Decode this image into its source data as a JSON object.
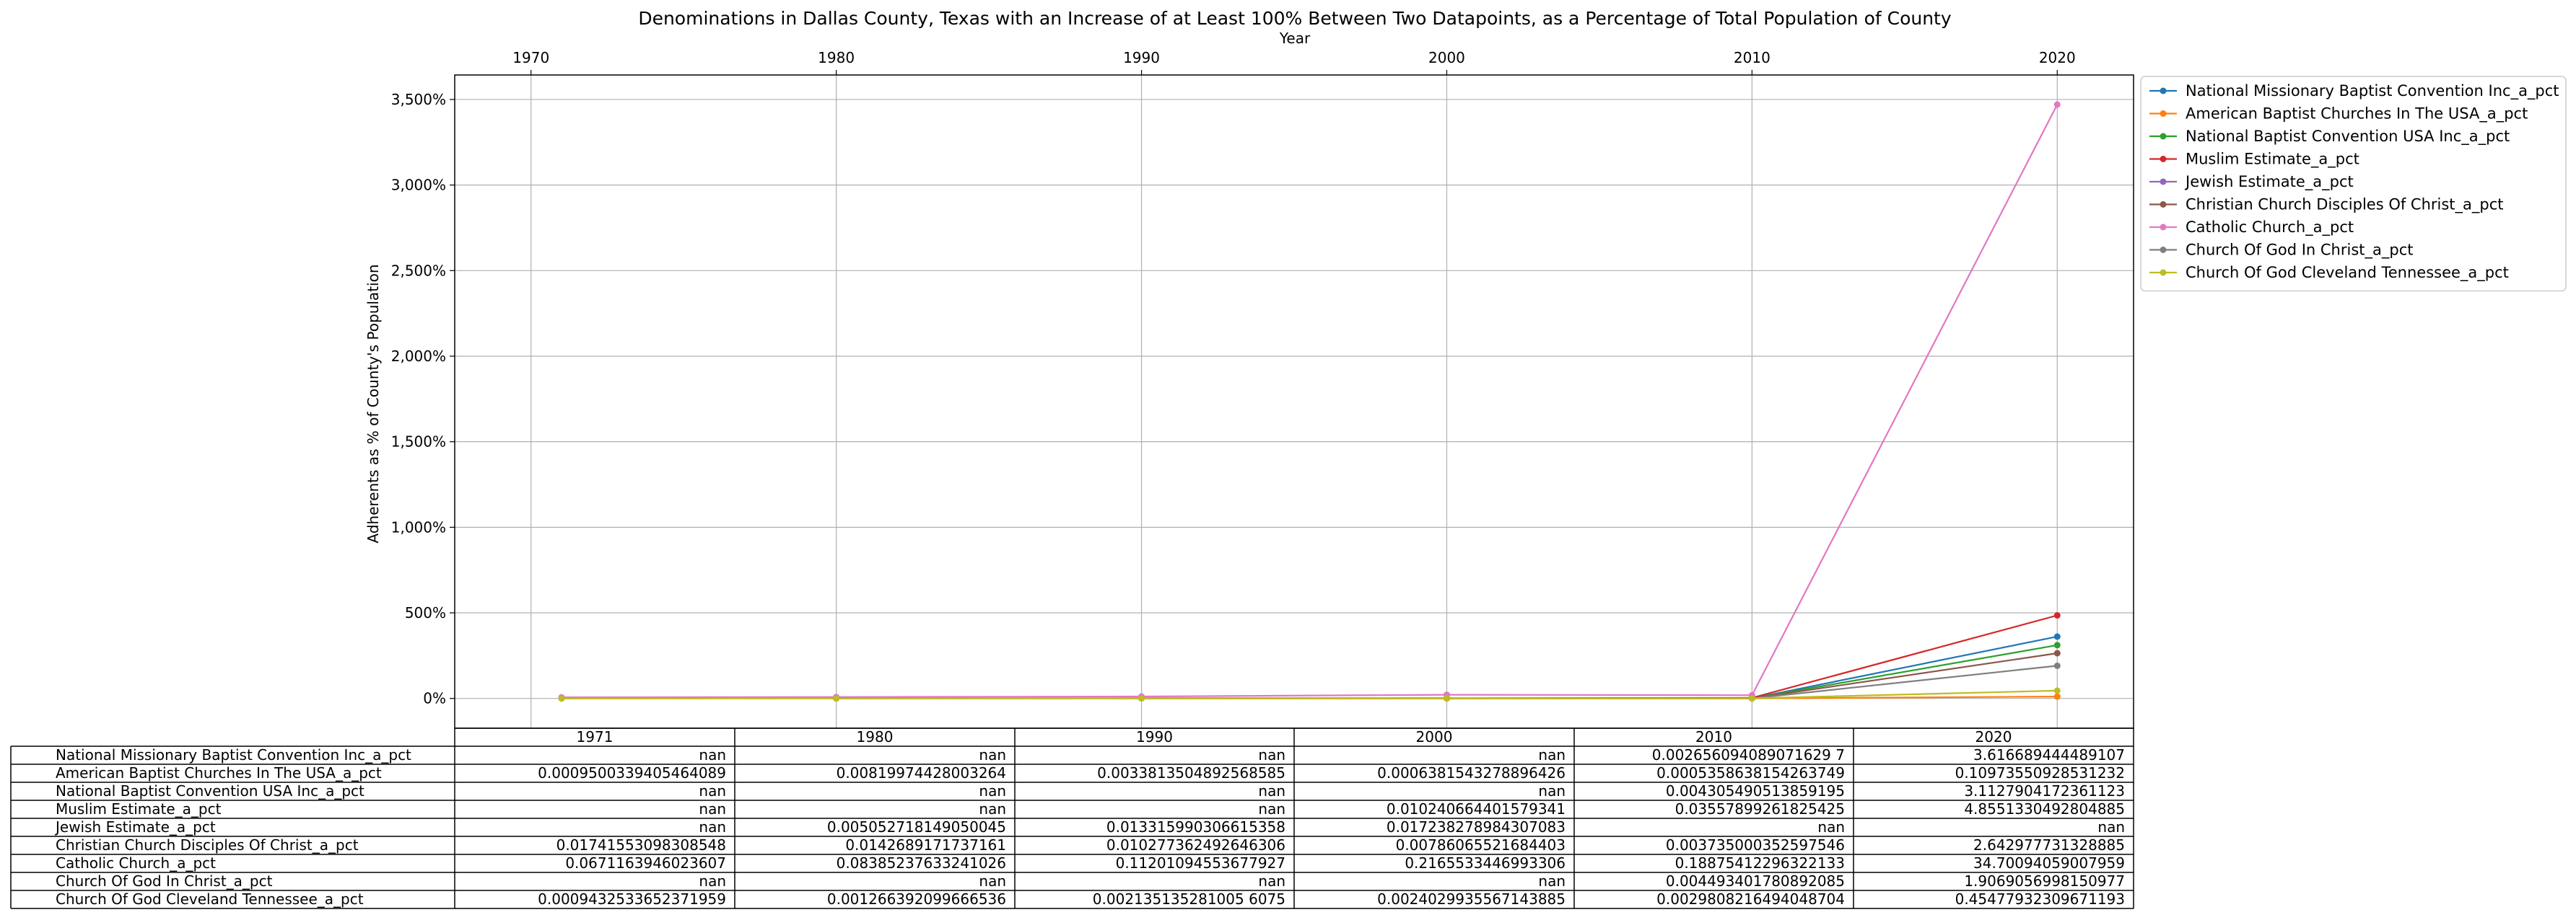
{
  "chart_data": {
    "type": "line",
    "title": "Denominations in Dallas County, Texas with an Increase of at Least 100% Between Two Datapoints, as a Percentage of Total Population of County",
    "xlabel": "Year",
    "ylabel": "Adherents as % of County's Population",
    "x_ticks": [
      "1970",
      "1980",
      "1990",
      "2000",
      "2010",
      "2020"
    ],
    "xlim": [
      1967.5,
      2022.5
    ],
    "y_ticks": [
      "0%",
      "500%",
      "1,000%",
      "1,500%",
      "2,000%",
      "2,500%",
      "3,000%",
      "3,500%"
    ],
    "ylim": [
      -174,
      3643
    ],
    "grid": true,
    "legend_position": "outside upper-right",
    "x": [
      1971,
      1980,
      1990,
      2000,
      2010,
      2020
    ],
    "series": [
      {
        "name": "National Missionary Baptist Convention Inc_a_pct",
        "color": "#1f77b4",
        "values": [
          null,
          null,
          null,
          null,
          0.26,
          361.67
        ]
      },
      {
        "name": "American Baptist Churches In The USA_a_pct",
        "color": "#ff7f0e",
        "values": [
          0.095,
          0.82,
          0.34,
          0.064,
          0.054,
          10.97
        ]
      },
      {
        "name": "National Baptist Convention USA Inc_a_pct",
        "color": "#2ca02c",
        "values": [
          null,
          null,
          null,
          null,
          0.43,
          311.28
        ]
      },
      {
        "name": "Muslim Estimate_a_pct",
        "color": "#d62728",
        "values": [
          null,
          null,
          null,
          1.02,
          3.56,
          485.51
        ]
      },
      {
        "name": "Jewish Estimate_a_pct",
        "color": "#9467bd",
        "values": [
          null,
          0.51,
          1.33,
          1.72,
          null,
          null
        ]
      },
      {
        "name": "Christian Church Disciples Of Christ_a_pct",
        "color": "#8c564b",
        "values": [
          1.74,
          1.43,
          1.03,
          0.79,
          0.37,
          264.3
        ]
      },
      {
        "name": "Catholic Church_a_pct",
        "color": "#e377c2",
        "values": [
          6.71,
          8.39,
          11.2,
          21.66,
          18.88,
          3470.09
        ]
      },
      {
        "name": "Church Of God In Christ_a_pct",
        "color": "#7f7f7f",
        "values": [
          null,
          null,
          null,
          null,
          0.45,
          190.69
        ]
      },
      {
        "name": "Church Of God Cleveland Tennessee_a_pct",
        "color": "#bcbd22",
        "values": [
          0.094,
          0.13,
          0.21,
          0.24,
          0.3,
          45.48
        ]
      }
    ],
    "table": {
      "columns": [
        "1971",
        "1980",
        "1990",
        "2000",
        "2010",
        "2020"
      ],
      "rows": [
        {
          "label": "National Missionary Baptist Convention Inc_a_pct",
          "cells": [
            "nan",
            "nan",
            "nan",
            "nan",
            "0.002656094089071629 7",
            "3.616689444489107"
          ]
        },
        {
          "label": "American Baptist Churches In The USA_a_pct",
          "cells": [
            "0.0009500339405464089",
            "0.00819974428003264",
            "0.0033813504892568585",
            "0.0006381543278896426",
            "0.0005358638154263749",
            "0.10973550928531232"
          ]
        },
        {
          "label": "National Baptist Convention USA Inc_a_pct",
          "cells": [
            "nan",
            "nan",
            "nan",
            "nan",
            "0.004305490513859195",
            "3.1127904172361123"
          ]
        },
        {
          "label": "Muslim Estimate_a_pct",
          "cells": [
            "nan",
            "nan",
            "nan",
            "0.010240664401579341",
            "0.03557899261825425",
            "4.8551330492804885"
          ]
        },
        {
          "label": "Jewish Estimate_a_pct",
          "cells": [
            "nan",
            "0.005052718149050045",
            "0.013315990306615358",
            "0.017238278984307083",
            "nan",
            "nan"
          ]
        },
        {
          "label": "Christian Church Disciples Of Christ_a_pct",
          "cells": [
            "0.01741553098308548",
            "0.0142689171737161",
            "0.010277362492646306",
            "0.00786065521684403",
            "0.003735000352597546",
            "2.642977731328885"
          ]
        },
        {
          "label": "Catholic Church_a_pct",
          "cells": [
            "0.0671163946023607",
            "0.08385237633241026",
            "0.11201094553677927",
            "0.2165533446993306",
            "0.18875412296322133",
            "34.70094059007959"
          ]
        },
        {
          "label": "Church Of God In Christ_a_pct",
          "cells": [
            "nan",
            "nan",
            "nan",
            "nan",
            "0.004493401780892085",
            "1.9069056998150977"
          ]
        },
        {
          "label": "Church Of God Cleveland Tennessee_a_pct",
          "cells": [
            "0.0009432533652371959",
            "0.001266392099666536",
            "0.002135135281005 6075",
            "0.0024029935567143885",
            "0.0029808216494048704",
            "0.45477932309671193"
          ]
        }
      ]
    }
  }
}
